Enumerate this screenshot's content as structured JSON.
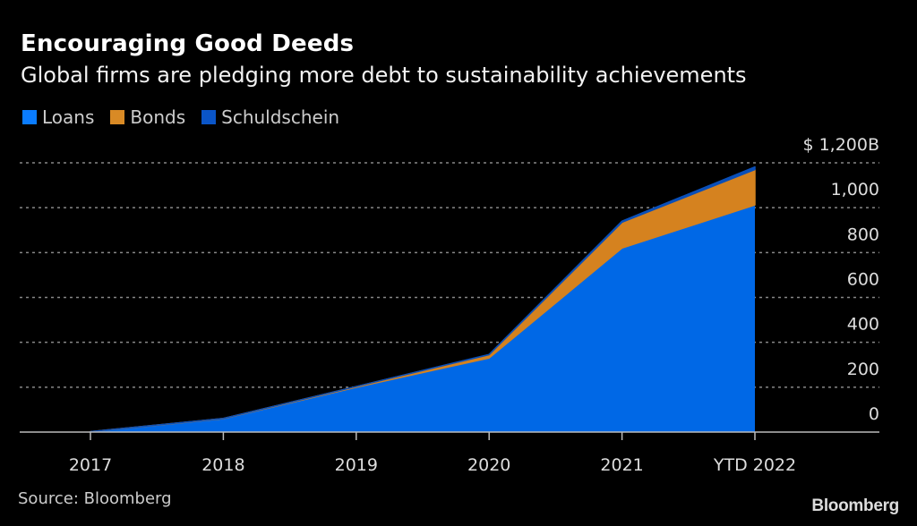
{
  "chart_data": {
    "type": "area",
    "stacked": true,
    "title": "Encouraging Good Deeds",
    "subtitle": "Global firms are pledging more debt to sustainability achievements",
    "xlabel": "",
    "ylabel": "",
    "categories": [
      "2017",
      "2018",
      "2019",
      "2020",
      "2021",
      "YTD 2022"
    ],
    "series": [
      {
        "name": "Loans",
        "color": "#0068e6",
        "values": [
          2,
          60,
          200,
          330,
          820,
          1012
        ]
      },
      {
        "name": "Bonds",
        "color": "#d5821f",
        "values": [
          0,
          1,
          3,
          15,
          115,
          158
        ]
      },
      {
        "name": "Schuldschein",
        "color": "#0a4fb8",
        "values": [
          0,
          0,
          0,
          1,
          5,
          12
        ]
      }
    ],
    "ylim": [
      0,
      1200
    ],
    "yticks": [
      0,
      200,
      400,
      600,
      800,
      1000,
      1200
    ],
    "ytick_labels": [
      "0",
      "200",
      "400",
      "600",
      "800",
      "1,000",
      "$ 1,200B"
    ],
    "y_axis_position": "right",
    "grid": true,
    "legend_position": "top-left",
    "source": "Source: Bloomberg",
    "brand": "Bloomberg"
  }
}
